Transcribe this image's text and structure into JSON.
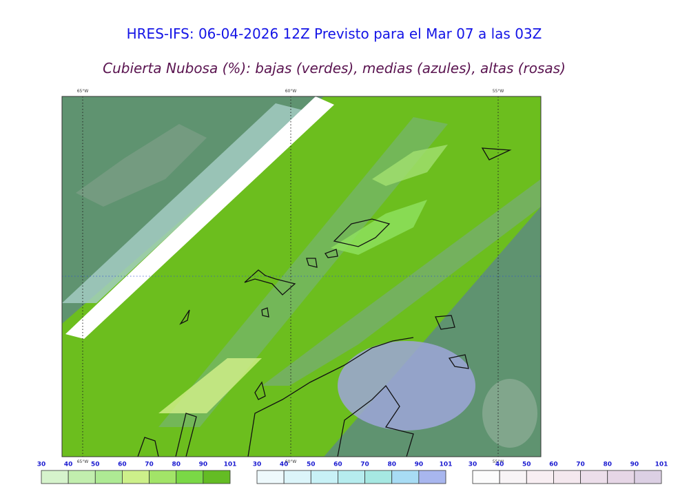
{
  "header": {
    "title": "HRES-IFS: 06-04-2026 12Z Previsto para el Mar 07 a las 03Z",
    "subtitle": "Cubierta Nubosa (%): bajas (verdes), medias (azules), altas (rosas)"
  },
  "map": {
    "longitude_labels": [
      "65°W",
      "60°W",
      "55°W"
    ]
  },
  "legends": [
    {
      "ticks": [
        30,
        40,
        50,
        60,
        70,
        80,
        90,
        101
      ],
      "colors": [
        "#d6f3cc",
        "#c2eeae",
        "#aeea94",
        "#cdf08a",
        "#a2e468",
        "#7ad846",
        "#64bc24"
      ]
    },
    {
      "ticks": [
        30,
        40,
        50,
        60,
        70,
        80,
        90,
        101
      ],
      "colors": [
        "#eef9fc",
        "#dcf5fa",
        "#c8f1f6",
        "#b6ecee",
        "#a6e8e2",
        "#a8dcf4",
        "#a8b6ee"
      ]
    },
    {
      "ticks": [
        30,
        40,
        50,
        60,
        70,
        80,
        90,
        101
      ],
      "colors": [
        "#fcfcfc",
        "#f8f4f6",
        "#f8eef2",
        "#f4e8ee",
        "#ecdeea",
        "#e6d6e6",
        "#dcd0e4"
      ]
    }
  ]
}
